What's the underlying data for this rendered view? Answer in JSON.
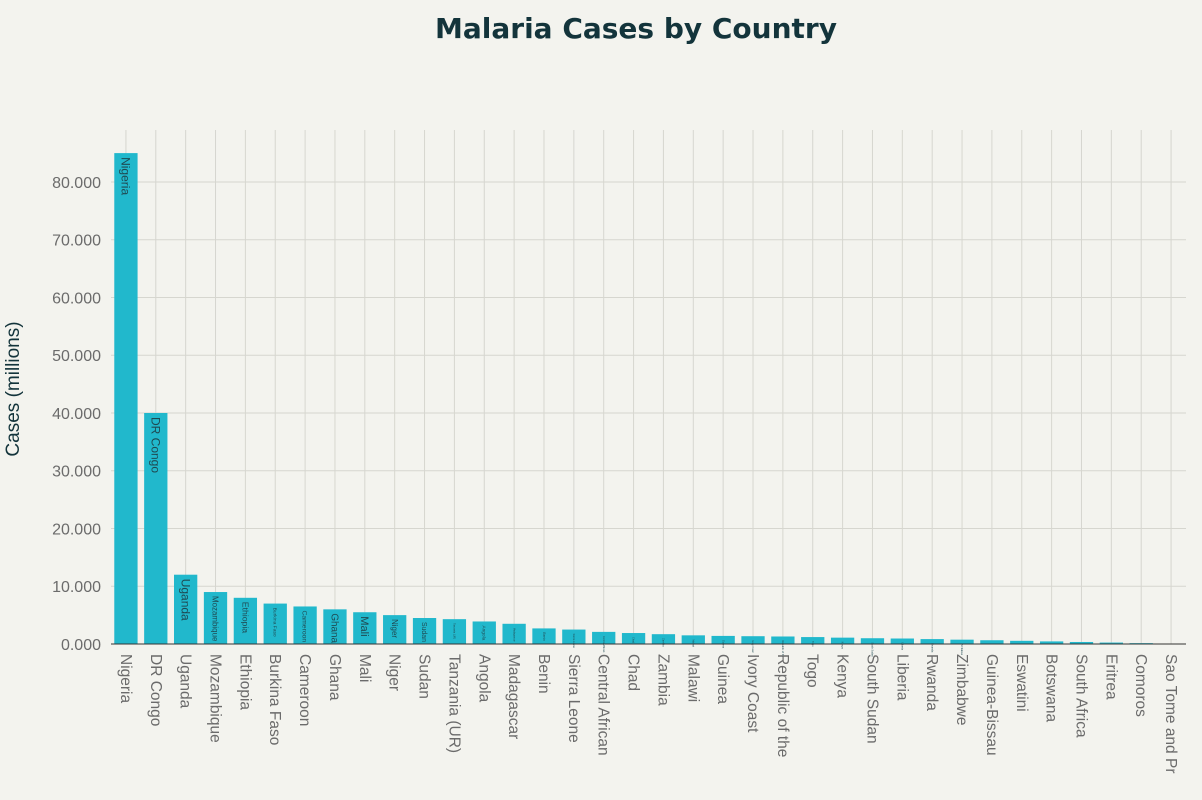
{
  "chart_data": {
    "type": "bar",
    "title": "Malaria Cases by Country",
    "xlabel": "",
    "ylabel": "Cases (millions)",
    "ylim": [
      0,
      89
    ],
    "yticks": [
      "0.000",
      "10.000",
      "20.000",
      "30.000",
      "40.000",
      "50.000",
      "60.000",
      "70.000",
      "80.000"
    ],
    "grid": true,
    "bar_color": "#21b8cc",
    "categories": [
      "Nigeria",
      "DR Congo",
      "Uganda",
      "Mozambique",
      "Ethiopia",
      "Burkina Faso",
      "Cameroon",
      "Ghana",
      "Mali",
      "Niger",
      "Sudan",
      "Tanzania (UR)",
      "Angola",
      "Madagascar",
      "Benin",
      "Sierra Leone",
      "Central African",
      "Chad",
      "Zambia",
      "Malawi",
      "Guinea",
      "Ivory Coast",
      "Republic of the",
      "Togo",
      "Kenya",
      "South Sudan",
      "Liberia",
      "Rwanda",
      "Zimbabwe",
      "Guinea-Bissau",
      "Eswatini",
      "Botswana",
      "South Africa",
      "Eritrea",
      "Comoros",
      "Sao Tome and Pr"
    ],
    "values": [
      85,
      40,
      12,
      9,
      8,
      7,
      6.5,
      6,
      5.5,
      5,
      4.5,
      4.3,
      3.9,
      3.5,
      2.7,
      2.5,
      2.1,
      1.9,
      1.7,
      1.5,
      1.4,
      1.35,
      1.3,
      1.2,
      1.1,
      1.0,
      0.95,
      0.85,
      0.75,
      0.65,
      0.55,
      0.45,
      0.35,
      0.25,
      0.15,
      0.05
    ]
  }
}
